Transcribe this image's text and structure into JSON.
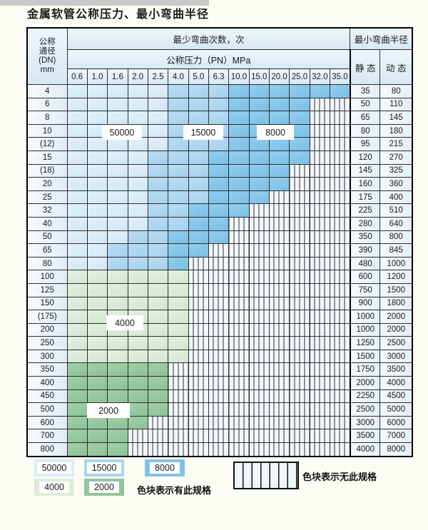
{
  "title": "金属软管公称压力、最小弯曲半径",
  "table": {
    "dn_header_lines": [
      "公称",
      "通径",
      "(DN)",
      "mm"
    ],
    "cycles_header": "最少弯曲次数，次",
    "pressure_header": "公称压力（PN）MPa",
    "pressures": [
      "0.6",
      "1.0",
      "1.6",
      "2.0",
      "2.5",
      "4.0",
      "5.0",
      "6.3",
      "10.0",
      "15.0",
      "20.0",
      "25.0",
      "32.0",
      "35.0"
    ],
    "radius_header": "最小弯曲半径",
    "static_label": "静 态",
    "dynamic_label": "动 态",
    "rows": [
      {
        "dn": "4",
        "zones": [
          [
            "c50",
            5
          ],
          [
            "c15",
            3
          ],
          [
            "c80",
            6
          ]
        ],
        "static": "35",
        "dynamic": "80"
      },
      {
        "dn": "6",
        "zones": [
          [
            "c50",
            5
          ],
          [
            "c15",
            3
          ],
          [
            "c80",
            4
          ]
        ],
        "static": "50",
        "dynamic": "110"
      },
      {
        "dn": "8",
        "zones": [
          [
            "c50",
            5
          ],
          [
            "c15",
            3
          ],
          [
            "c80",
            4
          ]
        ],
        "static": "65",
        "dynamic": "145"
      },
      {
        "dn": "10",
        "zones": [
          [
            "c50",
            5
          ],
          [
            "c15",
            3
          ],
          [
            "c80",
            4
          ]
        ],
        "static": "80",
        "dynamic": "180"
      },
      {
        "dn": "(12)",
        "zones": [
          [
            "c50",
            5
          ],
          [
            "c15",
            3
          ],
          [
            "c80",
            4
          ]
        ],
        "static": "95",
        "dynamic": "215"
      },
      {
        "dn": "15",
        "zones": [
          [
            "c50",
            4
          ],
          [
            "c15",
            3
          ],
          [
            "c80",
            5
          ]
        ],
        "static": "120",
        "dynamic": "270"
      },
      {
        "dn": "(18)",
        "zones": [
          [
            "c50",
            4
          ],
          [
            "c15",
            3
          ],
          [
            "c80",
            4
          ]
        ],
        "static": "145",
        "dynamic": "325"
      },
      {
        "dn": "20",
        "zones": [
          [
            "c50",
            4
          ],
          [
            "c15",
            3
          ],
          [
            "c80",
            4
          ]
        ],
        "static": "160",
        "dynamic": "360"
      },
      {
        "dn": "25",
        "zones": [
          [
            "c50",
            4
          ],
          [
            "c15",
            3
          ],
          [
            "c80",
            3
          ]
        ],
        "static": "175",
        "dynamic": "400"
      },
      {
        "dn": "32",
        "zones": [
          [
            "c50",
            4
          ],
          [
            "c15",
            2
          ],
          [
            "c80",
            3
          ]
        ],
        "static": "225",
        "dynamic": "510"
      },
      {
        "dn": "40",
        "zones": [
          [
            "c50",
            4
          ],
          [
            "c15",
            2
          ],
          [
            "c80",
            2
          ]
        ],
        "static": "280",
        "dynamic": "640"
      },
      {
        "dn": "50",
        "zones": [
          [
            "c50",
            3
          ],
          [
            "c15",
            2
          ],
          [
            "c80",
            3
          ]
        ],
        "static": "350",
        "dynamic": "800"
      },
      {
        "dn": "65",
        "zones": [
          [
            "c50",
            2
          ],
          [
            "c15",
            3
          ],
          [
            "c80",
            2
          ]
        ],
        "static": "390",
        "dynamic": "845"
      },
      {
        "dn": "80",
        "zones": [
          [
            "c50",
            2
          ],
          [
            "c15",
            3
          ],
          [
            "c80",
            1
          ]
        ],
        "static": "480",
        "dynamic": "1000"
      },
      {
        "dn": "100",
        "zones": [
          [
            "c40",
            6
          ]
        ],
        "static": "600",
        "dynamic": "1200"
      },
      {
        "dn": "125",
        "zones": [
          [
            "c40",
            6
          ]
        ],
        "static": "750",
        "dynamic": "1500"
      },
      {
        "dn": "150",
        "zones": [
          [
            "c40",
            6
          ]
        ],
        "static": "900",
        "dynamic": "1800"
      },
      {
        "dn": "(175)",
        "zones": [
          [
            "c40",
            6
          ]
        ],
        "static": "1000",
        "dynamic": "2000"
      },
      {
        "dn": "200",
        "zones": [
          [
            "c40",
            6
          ]
        ],
        "static": "1000",
        "dynamic": "2000"
      },
      {
        "dn": "250",
        "zones": [
          [
            "c40",
            6
          ]
        ],
        "static": "1250",
        "dynamic": "2500"
      },
      {
        "dn": "300",
        "zones": [
          [
            "c40",
            6
          ]
        ],
        "static": "1500",
        "dynamic": "3000"
      },
      {
        "dn": "350",
        "zones": [
          [
            "c20",
            5
          ]
        ],
        "static": "1750",
        "dynamic": "3500"
      },
      {
        "dn": "400",
        "zones": [
          [
            "c20",
            5
          ]
        ],
        "static": "2000",
        "dynamic": "4000"
      },
      {
        "dn": "450",
        "zones": [
          [
            "c20",
            5
          ]
        ],
        "static": "2250",
        "dynamic": "4500"
      },
      {
        "dn": "500",
        "zones": [
          [
            "c20",
            5
          ]
        ],
        "static": "2500",
        "dynamic": "5000"
      },
      {
        "dn": "600",
        "zones": [
          [
            "c20",
            4
          ]
        ],
        "static": "3000",
        "dynamic": "6000"
      },
      {
        "dn": "700",
        "zones": [
          [
            "c20",
            3
          ]
        ],
        "static": "3500",
        "dynamic": "7000"
      },
      {
        "dn": "800",
        "zones": [
          [
            "c20",
            3
          ]
        ],
        "static": "4000",
        "dynamic": "8000"
      }
    ]
  },
  "zone_labels": {
    "b50000": "50000",
    "b15000": "15000",
    "b8000": "8000",
    "g4000": "4000",
    "g2000": "2000"
  },
  "legend": {
    "swatches": [
      {
        "label": "50000",
        "color": "#d9ecf8"
      },
      {
        "label": "15000",
        "color": "#a9d5ef"
      },
      {
        "label": "8000",
        "color": "#7fc3e8"
      },
      {
        "label": "4000",
        "color": "#dceedb"
      },
      {
        "label": "2000",
        "color": "#90c79c"
      }
    ],
    "has_spec_text": "色块表示有此规格",
    "no_spec_text": "色块表示无此规格"
  },
  "colors": {
    "cycles_50000": "#d9ecf8",
    "cycles_15000": "#a9d5ef",
    "cycles_8000": "#7fc3e8",
    "cycles_4000": "#dceedb",
    "cycles_2000": "#90c79c",
    "hatch_background": "#f1f7fc",
    "grid_line": "#2e2e2e"
  }
}
